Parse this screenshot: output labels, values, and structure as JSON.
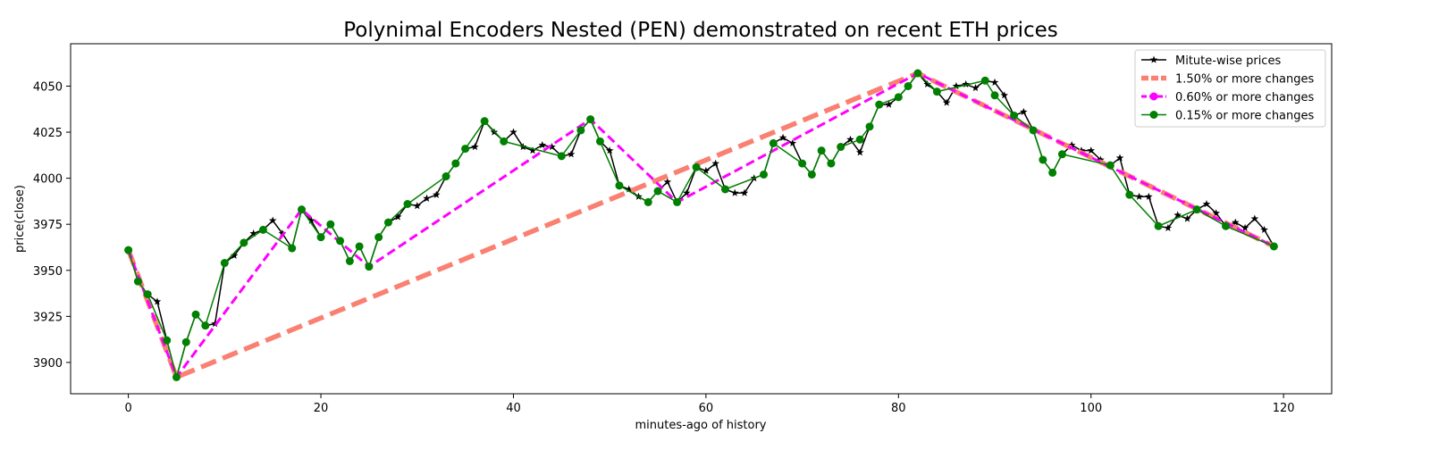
{
  "chart_data": {
    "type": "line",
    "title": "Polynimal Encoders Nested (PEN) demonstrated on recent ETH prices",
    "xlabel": "minutes-ago of history",
    "ylabel": "price(close)",
    "xlim": [
      -6,
      125
    ],
    "ylim": [
      3883,
      4073
    ],
    "xticks": [
      0,
      20,
      40,
      60,
      80,
      100,
      120
    ],
    "yticks": [
      3900,
      3925,
      3950,
      3975,
      4000,
      4025,
      4050
    ],
    "grid": false,
    "legend_position": "top-right",
    "series": [
      {
        "name": "Mitute-wise prices",
        "color": "#000000",
        "marker": "star",
        "x": [
          0,
          1,
          2,
          3,
          4,
          5,
          6,
          7,
          8,
          9,
          10,
          11,
          12,
          13,
          14,
          15,
          16,
          17,
          18,
          19,
          20,
          21,
          22,
          23,
          24,
          25,
          26,
          27,
          28,
          29,
          30,
          31,
          32,
          33,
          34,
          35,
          36,
          37,
          38,
          39,
          40,
          41,
          42,
          43,
          44,
          45,
          46,
          47,
          48,
          49,
          50,
          51,
          52,
          53,
          54,
          55,
          56,
          57,
          58,
          59,
          60,
          61,
          62,
          63,
          64,
          65,
          66,
          67,
          68,
          69,
          70,
          71,
          72,
          73,
          74,
          75,
          76,
          77,
          78,
          79,
          80,
          81,
          82,
          83,
          84,
          85,
          86,
          87,
          88,
          89,
          90,
          91,
          92,
          93,
          94,
          95,
          96,
          97,
          98,
          99,
          100,
          101,
          102,
          103,
          104,
          105,
          106,
          107,
          108,
          109,
          110,
          111,
          112,
          113,
          114,
          115,
          116,
          117,
          118,
          119
        ],
        "y": [
          3961,
          3944,
          3937,
          3933,
          3912,
          3892,
          3911,
          3926,
          3920,
          3921,
          3954,
          3958,
          3965,
          3970,
          3972,
          3977,
          3970,
          3962,
          3983,
          3977,
          3968,
          3975,
          3966,
          3955,
          3963,
          3952,
          3968,
          3976,
          3979,
          3986,
          3985,
          3989,
          3991,
          4001,
          4008,
          4016,
          4017,
          4031,
          4025,
          4020,
          4025,
          4017,
          4015,
          4018,
          4017,
          4012,
          4013,
          4026,
          4032,
          4020,
          4015,
          3996,
          3994,
          3990,
          3987,
          3993,
          3998,
          3987,
          3992,
          4006,
          4004,
          4008,
          3994,
          3992,
          3992,
          4000,
          4002,
          4019,
          4022,
          4019,
          4008,
          4002,
          4015,
          4008,
          4017,
          4021,
          4014,
          4028,
          4040,
          4040,
          4044,
          4050,
          4057,
          4051,
          4047,
          4041,
          4050,
          4051,
          4049,
          4053,
          4052,
          4045,
          4034,
          4036,
          4026,
          4010,
          4003,
          4013,
          4018,
          4015,
          4015,
          4010,
          4007,
          4011,
          3991,
          3990,
          3990,
          3974,
          3973,
          3980,
          3978,
          3983,
          3986,
          3981,
          3974,
          3976,
          3973,
          3978,
          3972,
          3963
        ]
      },
      {
        "name": "1.50% or more changes",
        "color": "#fa8072",
        "x": [
          0,
          5,
          82,
          119
        ],
        "y": [
          3961,
          3892,
          4057,
          3963
        ]
      },
      {
        "name": "0.60% or more changes",
        "color": "#ff00ff",
        "x": [
          0,
          5,
          18,
          25,
          48,
          57,
          82,
          119
        ],
        "y": [
          3961,
          3892,
          3983,
          3952,
          4032,
          3987,
          4057,
          3963
        ]
      },
      {
        "name": "0.15% or more changes",
        "color": "#008000",
        "x": [
          0,
          1,
          2,
          4,
          5,
          6,
          7,
          8,
          10,
          12,
          14,
          17,
          18,
          20,
          21,
          22,
          23,
          24,
          25,
          26,
          27,
          29,
          33,
          34,
          35,
          37,
          39,
          45,
          47,
          48,
          49,
          51,
          54,
          55,
          57,
          59,
          62,
          66,
          67,
          70,
          71,
          72,
          73,
          74,
          76,
          77,
          78,
          80,
          81,
          82,
          84,
          89,
          90,
          92,
          94,
          95,
          96,
          97,
          102,
          104,
          107,
          111,
          114,
          119
        ],
        "y": [
          3961,
          3944,
          3937,
          3912,
          3892,
          3911,
          3926,
          3920,
          3954,
          3965,
          3972,
          3962,
          3983,
          3968,
          3975,
          3966,
          3955,
          3963,
          3952,
          3968,
          3976,
          3986,
          4001,
          4008,
          4016,
          4031,
          4020,
          4012,
          4026,
          4032,
          4020,
          3996,
          3987,
          3993,
          3987,
          4006,
          3994,
          4002,
          4019,
          4008,
          4002,
          4015,
          4008,
          4017,
          4021,
          4028,
          4040,
          4044,
          4050,
          4057,
          4047,
          4053,
          4045,
          4034,
          4026,
          4010,
          4003,
          4013,
          4007,
          3991,
          3974,
          3983,
          3974,
          3963
        ]
      }
    ]
  }
}
